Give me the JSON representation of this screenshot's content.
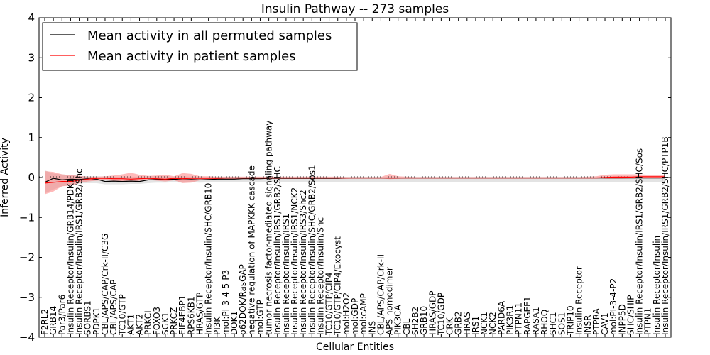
{
  "chart_data": {
    "type": "line",
    "title": "Insulin Pathway -- 273 samples",
    "xlabel": "Cellular Entities",
    "ylabel": "Inferred Activity",
    "ylim": [
      -4,
      4
    ],
    "yticks": [
      -4,
      -3,
      -2,
      -1,
      0,
      1,
      2,
      3,
      4
    ],
    "ytick_labels": [
      "−4",
      "−3",
      "−2",
      "−1",
      "0",
      "1",
      "2",
      "3",
      "4"
    ],
    "legend_position": "top-left",
    "categories": [
      "F2RL2",
      "GRB14",
      "Par3/Par6",
      "Insulin Receptor/Insulin/GRB14/PDK1",
      "Insulin Receptor/Insulin/IRS1/GRB2/Shc",
      "SORBS1",
      "PDPK1",
      "CBL/APS/CAP/Crk-II/C3G",
      "CBL/APS/CAP",
      "TC10/GTP",
      "AKT1",
      "AKT2",
      "PRKCI",
      "FOXO3",
      "SGK1",
      "PRKCZ",
      "EIF4EBP1",
      "RPS6KB1",
      "HRAS/GTP",
      "Insulin Receptor/Insulin/SHC/GRB10",
      "PI3K",
      "mol:PI-3-4-5-P3",
      "DOK1",
      "p62DOK/RasGAP",
      "negative regulation of MAPKKK cascade",
      "mol:GTP",
      "tumor necrosis factor-mediated signaling pathway",
      "Insulin Receptor/Insulin/IRS1/GRB2/SHC",
      "Insulin Receptor/Insulin/IRS1",
      "Insulin Receptor/Insulin/IRS1/NCK2",
      "Insulin Receptor/Insulin/IRS3/Shc2",
      "Insulin Receptor/Insulin/SHC/GRB2/Sos1",
      "Insulin Receptor/Insulin/Shc",
      "TC10/GTP/CIP4",
      "TC10/GTP/CIP4/Exocyst",
      "mol:H2O2",
      "mol:GDP",
      "mol:cAMP",
      "INS",
      "CBL/APS/CAP/Crk-II",
      "APS homodimer",
      "PIK3CA",
      "CBL",
      "SH2B2",
      "GRB10",
      "HRAS/GDP",
      "TC10/GDP",
      "CRK",
      "GRB2",
      "HRAS",
      "IRS1",
      "NCK1",
      "NCK2",
      "PARD6A",
      "PIK3R1",
      "PTPN11",
      "RAPGEF1",
      "RASA1",
      "RHOQ",
      "SHC1",
      "SOS1",
      "TRIP10",
      "Insulin Receptor",
      "INSR",
      "PTPRA",
      "CAV1",
      "mol:PI-3-4-P2",
      "INPP5D",
      "SHC/SHIP",
      "Insulin Receptor/Insulin/IRS1/GRB2/SHC/Sos",
      "PTPN1",
      "Insulin Receptor/Insulin",
      "Insulin Receptor/Insulin/IRS1/GRB2/SHC/PTP1B"
    ],
    "series": [
      {
        "name": "Mean activity in all permuted samples",
        "color": "#000000",
        "values": [
          -0.12,
          -0.02,
          -0.06,
          -0.04,
          -0.05,
          -0.03,
          -0.04,
          -0.1,
          -0.09,
          -0.1,
          -0.09,
          -0.1,
          -0.06,
          -0.05,
          -0.05,
          -0.04,
          -0.06,
          -0.05,
          -0.06,
          -0.05,
          -0.04,
          -0.04,
          -0.04,
          -0.03,
          -0.03,
          -0.03,
          -0.02,
          -0.02,
          -0.02,
          -0.02,
          -0.02,
          -0.02,
          -0.02,
          -0.02,
          -0.02,
          -0.01,
          -0.01,
          -0.01,
          -0.01,
          -0.01,
          -0.01,
          -0.01,
          -0.01,
          -0.01,
          -0.01,
          -0.01,
          -0.01,
          -0.01,
          -0.01,
          -0.01,
          -0.01,
          -0.01,
          -0.01,
          -0.01,
          -0.01,
          -0.01,
          -0.01,
          -0.01,
          -0.01,
          -0.01,
          -0.01,
          -0.01,
          -0.01,
          -0.01,
          -0.01,
          -0.01,
          -0.01,
          -0.01,
          -0.01,
          -0.01,
          -0.01,
          -0.01,
          -0.01
        ],
        "band_upper": [
          0.18,
          0.1,
          0.08,
          0.06,
          0.04,
          0.03,
          0.03,
          0.02,
          0.02,
          0.02,
          0.02,
          0.02,
          0.03,
          0.03,
          0.03,
          0.02,
          0.03,
          0.02,
          0.02,
          0.02,
          0.02,
          0.02,
          0.02,
          0.02,
          0.02,
          0.02,
          0.02,
          0.02,
          0.02,
          0.02,
          0.02,
          0.02,
          0.02,
          0.02,
          0.02,
          0.02,
          0.02,
          0.02,
          0.02,
          0.02,
          0.02,
          0.02,
          0.02,
          0.02,
          0.02,
          0.02,
          0.02,
          0.02,
          0.02,
          0.02,
          0.02,
          0.02,
          0.02,
          0.02,
          0.02,
          0.02,
          0.02,
          0.02,
          0.02,
          0.02,
          0.02,
          0.02,
          0.02,
          0.02,
          0.02,
          0.02,
          0.02,
          0.02,
          0.02,
          0.02,
          0.02,
          0.02,
          0.02
        ],
        "band_lower": [
          -0.4,
          -0.3,
          -0.22,
          -0.18,
          -0.15,
          -0.14,
          -0.14,
          -0.17,
          -0.17,
          -0.17,
          -0.16,
          -0.16,
          -0.14,
          -0.13,
          -0.13,
          -0.12,
          -0.13,
          -0.12,
          -0.13,
          -0.12,
          -0.12,
          -0.12,
          -0.12,
          -0.12,
          -0.12,
          -0.12,
          -0.12,
          -0.12,
          -0.12,
          -0.12,
          -0.12,
          -0.12,
          -0.12,
          -0.12,
          -0.12,
          -0.12,
          -0.12,
          -0.12,
          -0.12,
          -0.12,
          -0.12,
          -0.12,
          -0.12,
          -0.12,
          -0.12,
          -0.12,
          -0.12,
          -0.12,
          -0.12,
          -0.12,
          -0.12,
          -0.12,
          -0.12,
          -0.12,
          -0.12,
          -0.12,
          -0.12,
          -0.12,
          -0.12,
          -0.12,
          -0.12,
          -0.12,
          -0.12,
          -0.12,
          -0.12,
          -0.12,
          -0.12,
          -0.12,
          -0.12,
          -0.12,
          -0.12,
          -0.12,
          -0.12
        ],
        "band_color": "#b0b0b0"
      },
      {
        "name": "Mean activity in patient samples",
        "color": "#ff0000",
        "values": [
          -0.14,
          -0.12,
          -0.1,
          -0.1,
          -0.07,
          -0.04,
          -0.02,
          -0.02,
          -0.03,
          -0.03,
          -0.04,
          -0.03,
          -0.02,
          -0.03,
          -0.04,
          -0.02,
          -0.03,
          -0.02,
          -0.02,
          -0.02,
          -0.02,
          -0.01,
          -0.01,
          -0.01,
          -0.01,
          -0.01,
          -0.01,
          -0.01,
          -0.01,
          -0.01,
          -0.01,
          -0.01,
          -0.01,
          -0.01,
          -0.01,
          -0.01,
          -0.01,
          -0.01,
          -0.01,
          -0.01,
          -0.01,
          -0.01,
          -0.01,
          -0.01,
          -0.01,
          -0.01,
          -0.01,
          -0.01,
          -0.01,
          -0.01,
          -0.01,
          -0.01,
          -0.01,
          -0.01,
          -0.01,
          -0.01,
          -0.01,
          -0.01,
          -0.01,
          -0.01,
          -0.01,
          -0.01,
          -0.01,
          -0.01,
          -0.01,
          0.0,
          0.01,
          0.01,
          0.01,
          0.02,
          0.02,
          0.02,
          0.02
        ],
        "band_upper": [
          0.16,
          0.14,
          0.08,
          0.06,
          0.04,
          0.02,
          0.02,
          0.03,
          0.05,
          0.08,
          0.12,
          0.07,
          0.04,
          0.05,
          0.07,
          0.03,
          0.11,
          0.09,
          0.03,
          0.03,
          0.02,
          0.02,
          0.02,
          0.02,
          0.02,
          0.02,
          0.02,
          0.02,
          0.02,
          0.02,
          0.02,
          0.02,
          0.02,
          0.02,
          0.02,
          0.01,
          0.01,
          0.01,
          0.01,
          0.01,
          0.09,
          0.03,
          0.02,
          0.01,
          0.01,
          0.01,
          0.01,
          0.01,
          0.01,
          0.01,
          0.01,
          0.01,
          0.01,
          0.01,
          0.01,
          0.01,
          0.01,
          0.01,
          0.01,
          0.01,
          0.01,
          0.01,
          0.01,
          0.02,
          0.03,
          0.07,
          0.08,
          0.08,
          0.08,
          0.08,
          0.07,
          0.06,
          0.06
        ],
        "band_lower": [
          -0.42,
          -0.35,
          -0.22,
          -0.2,
          -0.14,
          -0.1,
          -0.08,
          -0.07,
          -0.08,
          -0.09,
          -0.11,
          -0.08,
          -0.06,
          -0.08,
          -0.1,
          -0.07,
          -0.14,
          -0.13,
          -0.07,
          -0.06,
          -0.05,
          -0.04,
          -0.03,
          -0.03,
          -0.03,
          -0.03,
          -0.03,
          -0.03,
          -0.03,
          -0.03,
          -0.03,
          -0.03,
          -0.03,
          -0.03,
          -0.03,
          -0.03,
          -0.02,
          -0.02,
          -0.02,
          -0.02,
          -0.04,
          -0.03,
          -0.02,
          -0.02,
          -0.02,
          -0.02,
          -0.02,
          -0.02,
          -0.02,
          -0.02,
          -0.02,
          -0.02,
          -0.02,
          -0.02,
          -0.02,
          -0.02,
          -0.02,
          -0.02,
          -0.02,
          -0.02,
          -0.02,
          -0.02,
          -0.02,
          -0.02,
          -0.02,
          -0.03,
          -0.03,
          -0.03,
          -0.02,
          -0.02,
          -0.02,
          -0.02,
          -0.02
        ],
        "band_color": "#ff6666"
      }
    ]
  }
}
